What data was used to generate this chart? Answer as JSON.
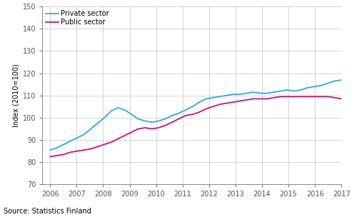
{
  "private_sector": [
    85.5,
    86.5,
    88.0,
    89.5,
    91.0,
    92.5,
    95.0,
    97.5,
    100.0,
    103.0,
    104.5,
    103.5,
    101.5,
    99.5,
    98.5,
    98.0,
    98.5,
    99.5,
    101.0,
    102.0,
    103.5,
    105.0,
    107.0,
    108.5,
    109.0,
    109.5,
    110.0,
    110.5,
    110.5,
    111.0,
    111.5,
    111.0,
    111.0,
    111.5,
    112.0,
    112.5,
    112.0,
    112.5,
    113.5,
    114.0,
    114.5,
    115.5,
    116.5,
    117.0
  ],
  "public_sector": [
    82.5,
    83.0,
    83.5,
    84.5,
    85.0,
    85.5,
    86.0,
    87.0,
    88.0,
    89.0,
    90.5,
    92.0,
    93.5,
    95.0,
    95.5,
    95.0,
    95.5,
    96.5,
    98.0,
    99.5,
    101.0,
    101.5,
    102.5,
    104.0,
    105.0,
    106.0,
    106.5,
    107.0,
    107.5,
    108.0,
    108.5,
    108.5,
    108.5,
    109.0,
    109.5,
    109.5,
    109.5,
    109.5,
    109.5,
    109.5,
    109.5,
    109.5,
    109.0,
    108.5
  ],
  "x_start": 2006.0,
  "x_end": 2017.0,
  "n_points": 44,
  "ylim": [
    70,
    150
  ],
  "yticks": [
    70,
    80,
    90,
    100,
    110,
    120,
    130,
    140,
    150
  ],
  "xticks": [
    2006,
    2007,
    2008,
    2009,
    2010,
    2011,
    2012,
    2013,
    2014,
    2015,
    2016,
    2017
  ],
  "ylabel": "Index (2010=100)",
  "private_color": "#2AABE2",
  "public_color": "#CC1177",
  "private_label": "Private sector",
  "public_label": "Public sector",
  "source_text": "Source: Statistics Finland",
  "grid_color": "#CCCCCC",
  "background_color": "#FFFFFF",
  "line_width": 1.3
}
